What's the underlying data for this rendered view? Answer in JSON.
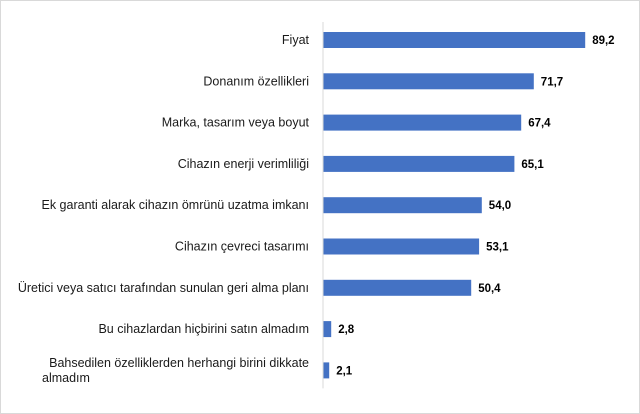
{
  "chart_data": {
    "type": "bar",
    "orientation": "horizontal",
    "categories": [
      [
        "Fiyat"
      ],
      [
        "Donanım özellikleri"
      ],
      [
        "Marka, tasarım veya boyut"
      ],
      [
        "Cihazın enerji verimliliği"
      ],
      [
        "Ek garanti alarak cihazın ömrünü uzatma imkanı"
      ],
      [
        "Cihazın çevreci tasarımı"
      ],
      [
        "Üretici veya satıcı tarafından sunulan geri alma planı"
      ],
      [
        "Bu cihazlardan hiçbirini satın almadım"
      ],
      [
        "Bahsedilen özelliklerden herhangi birini dikkate",
        "almadım"
      ]
    ],
    "values": [
      89.2,
      71.7,
      67.4,
      65.1,
      54.0,
      53.1,
      50.4,
      2.8,
      2.1
    ],
    "value_labels": [
      "89,2",
      "71,7",
      "67,4",
      "65,1",
      "54,0",
      "53,1",
      "50,4",
      "2,8",
      "2,1"
    ],
    "xlim": [
      0,
      100
    ],
    "grid": false,
    "legend": "none",
    "bar_color": "#4472c4"
  }
}
